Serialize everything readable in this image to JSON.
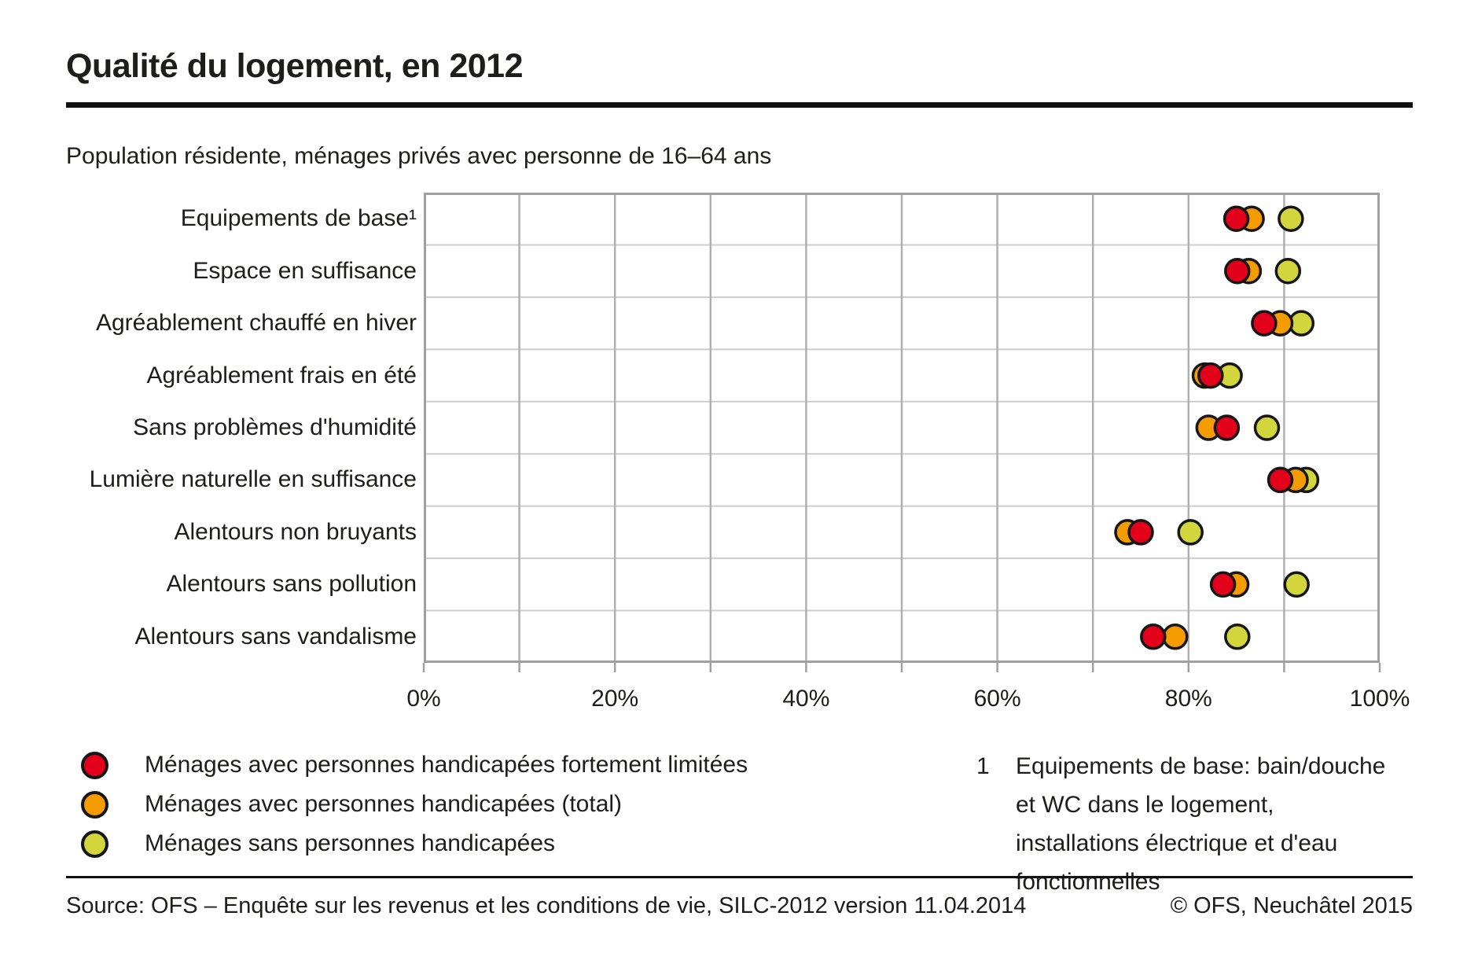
{
  "header": {
    "title": "Qualité du logement, en 2012",
    "subtitle": "Population résidente, ménages privés avec personne de 16–64 ans"
  },
  "chart_data": {
    "type": "scatter",
    "variant": "horizontal-dot-plot",
    "title": "Qualité du logement, en 2012",
    "subtitle": "Population résidente, ménages privés avec personne de 16–64 ans",
    "categories": [
      "Equipements de base¹",
      "Espace en suffisance",
      "Agréablement chauffé en hiver",
      "Agréablement frais en été",
      "Sans problèmes d'humidité",
      "Lumière naturelle en suffisance",
      "Alentours non bruyants",
      "Alentours sans pollution",
      "Alentours sans vandalisme"
    ],
    "series": [
      {
        "name": "Ménages avec personnes handicapées fortement limitées",
        "color": "#e2001a",
        "values": [
          85.0,
          85.1,
          87.9,
          82.3,
          84.0,
          89.6,
          75.0,
          83.6,
          76.3
        ]
      },
      {
        "name": "Ménages avec personnes handicapées (total)",
        "color": "#f59c00",
        "values": [
          86.6,
          86.3,
          89.6,
          81.7,
          82.1,
          91.2,
          73.6,
          85.0,
          78.6
        ]
      },
      {
        "name": "Ménages sans personnes handicapées",
        "color": "#d2d53c",
        "values": [
          90.7,
          90.4,
          91.8,
          84.3,
          88.2,
          92.3,
          80.2,
          91.3,
          85.1
        ]
      }
    ],
    "x_tick_labels": [
      "0%",
      "20%",
      "40%",
      "60%",
      "80%",
      "100%"
    ],
    "xlim": [
      0,
      100
    ],
    "x_gridline_step_pct": 10,
    "grid": "vertical gridlines every 10%, horizontal gridline between each category row",
    "legend_position": "bottom-left",
    "marker_outline_color": "#161616",
    "grid_colors": {
      "border": "#a0a0a0",
      "vertical": "#b0b0b0",
      "horizontal": "#cdcdcd",
      "tick": "#a0a0a0"
    }
  },
  "legend": {
    "items": [
      {
        "label": "Ménages avec personnes handicapées fortement limitées",
        "color": "#e2001a"
      },
      {
        "label": "Ménages avec personnes handicapées (total)",
        "color": "#f59c00"
      },
      {
        "label": "Ménages sans personnes handicapées",
        "color": "#d2d53c"
      }
    ]
  },
  "footnote": {
    "marker": "1",
    "lines": [
      "Equipements de base: bain/douche",
      "et WC dans le logement,",
      "installations électrique et d'eau",
      "fonctionnelles"
    ]
  },
  "footer": {
    "source": "Source: OFS – Enquête sur les revenus et les conditions de vie, SILC-2012 version 11.04.2014",
    "copyright": "© OFS, Neuchâtel 2015"
  }
}
